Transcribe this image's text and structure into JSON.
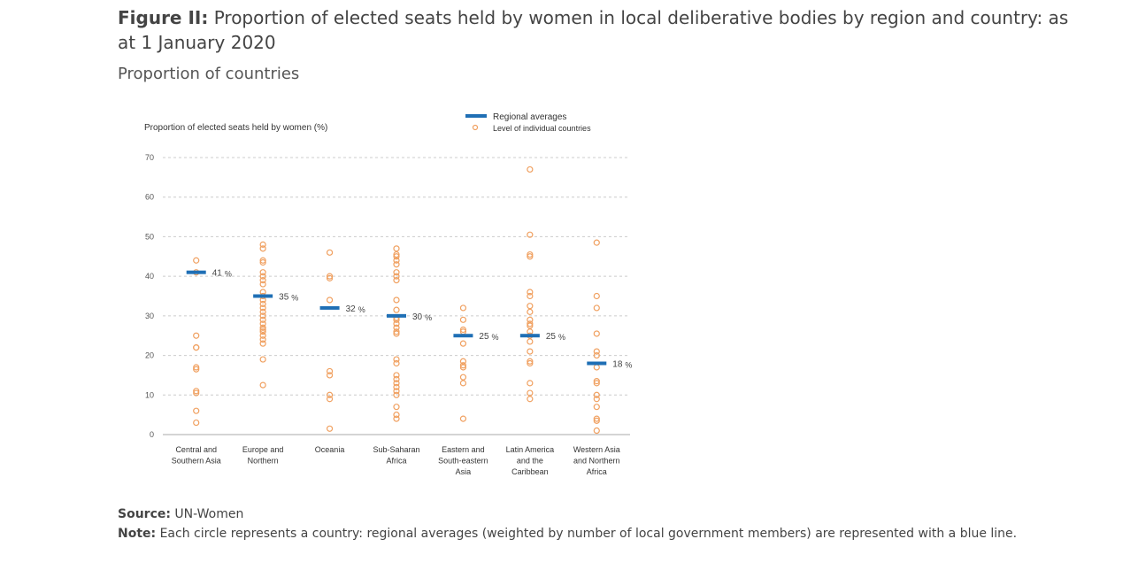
{
  "figure": {
    "label": "Figure II:",
    "title": "Proportion of elected seats held by women in local deliberative bodies by region and country: as at 1 January 2020",
    "subtitle": "Proportion of countries"
  },
  "source": {
    "label": "Source:",
    "text": "UN-Women"
  },
  "note": {
    "label": "Note:",
    "text": "Each circle represents a country: regional averages (weighted by number of local government members) are represented with a blue line."
  },
  "colors": {
    "average": "#1f6fb5",
    "country": "#f0a060",
    "grid": "#cccccc",
    "axis": "#aaaaaa"
  },
  "chart_data": {
    "type": "scatter",
    "ylabel": "Proportion of elected seats held by women (%)",
    "ylim": [
      0,
      70
    ],
    "yticks": [
      0,
      10,
      20,
      30,
      40,
      50,
      60,
      70
    ],
    "grid": true,
    "legend_position": "top-right",
    "legend": {
      "average": "Regional averages",
      "country": "Level of individual countries"
    },
    "average_suffix": "%",
    "regions": [
      {
        "label": [
          "Central and",
          "Southern Asia"
        ],
        "average": 41,
        "average_label": "41",
        "countries": [
          44,
          41,
          25,
          22,
          22,
          17,
          16.5,
          11,
          10.5,
          6,
          3
        ]
      },
      {
        "label": [
          "Europe and",
          "Northern"
        ],
        "average": 35,
        "average_label": "35",
        "countries": [
          48,
          47,
          44,
          43.5,
          41,
          40,
          39,
          38,
          36,
          35,
          34,
          33,
          32,
          31,
          30,
          29,
          28,
          27,
          26.5,
          26,
          25,
          24,
          23,
          19,
          12.5
        ]
      },
      {
        "label": [
          "Oceania"
        ],
        "average": 32,
        "average_label": "32",
        "countries": [
          46,
          40,
          39.5,
          34,
          16,
          15,
          10,
          9,
          1.5
        ]
      },
      {
        "label": [
          "Sub-Saharan",
          "Africa"
        ],
        "average": 30,
        "average_label": "30",
        "countries": [
          47,
          45.5,
          45,
          44,
          43,
          41,
          40,
          39,
          34,
          31.5,
          29.5,
          29,
          28,
          27,
          26,
          25.5,
          19,
          18,
          15,
          14,
          13,
          12,
          11,
          10,
          7,
          5,
          4
        ]
      },
      {
        "label": [
          "Eastern and",
          "South-eastern",
          "Asia"
        ],
        "average": 25,
        "average_label": "25",
        "countries": [
          32,
          29,
          26.5,
          26,
          23,
          18.5,
          17.5,
          17,
          14.5,
          13,
          4
        ]
      },
      {
        "label": [
          "Latin America",
          "and the",
          "Caribbean"
        ],
        "average": 25,
        "average_label": "25",
        "countries": [
          67,
          50.5,
          45.5,
          45,
          36,
          35,
          32.5,
          31,
          29,
          28,
          27.5,
          26,
          25,
          23.5,
          21,
          18.5,
          18,
          13,
          10.5,
          9
        ]
      },
      {
        "label": [
          "Western Asia",
          "and Northern",
          "Africa"
        ],
        "average": 18,
        "average_label": "18",
        "countries": [
          48.5,
          35,
          32,
          25.5,
          21,
          20,
          17,
          13.5,
          13,
          10,
          9,
          7,
          4,
          3.5,
          1
        ]
      }
    ]
  }
}
